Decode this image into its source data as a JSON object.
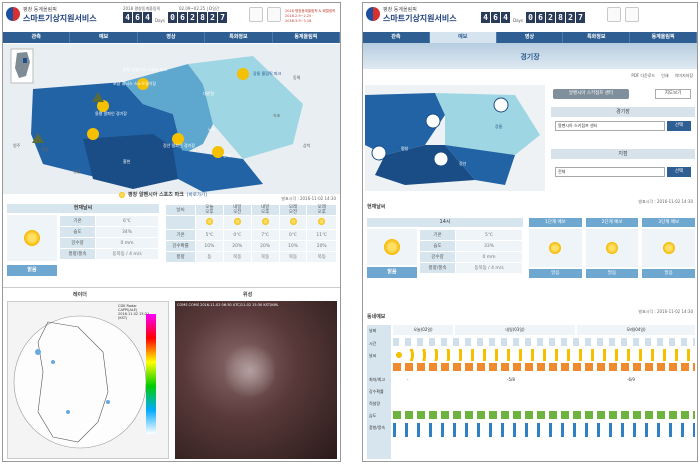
{
  "left": {
    "header": {
      "title_small": "평창 동계올림픽",
      "title_main": "스마트기상지원서비스",
      "games_label": "2018 평창동계올림픽",
      "dates": "02.09~02.25  |  D일간",
      "digits": [
        "4",
        "6",
        "4"
      ],
      "days_label": "Days",
      "clock": [
        "0",
        "6",
        "2",
        "8",
        "2",
        "7"
      ],
      "event": "2018 평창동계올림픽 & 패럴림픽",
      "event_dates": "2018.2.9~2.25 · 2018.3.9~3.18"
    },
    "nav": [
      "관측",
      "예보",
      "영상",
      "특화정보",
      "동계올림픽"
    ],
    "map_labels": [
      "보광 휘닉스 스노우경기장",
      "용평 알파인 경기장",
      "정선 알파인 경기장",
      "평창 알펜시아 스포츠 파크",
      "강릉 올림픽 파크",
      "철원",
      "홍천",
      "인제",
      "속초",
      "대관령",
      "원주",
      "영월",
      "삼척",
      "동해",
      "노즈"
    ],
    "venue_title": "평창 알펜시아 스포츠 파크",
    "venue_link": "[바로가기]",
    "issued": "발표시각 : 2016-11-02 14:30",
    "current": {
      "title": "현재날씨",
      "rows": [
        [
          "기온",
          "6℃"
        ],
        [
          "습도",
          "34%"
        ],
        [
          "강수량",
          "0 mm"
        ],
        [
          "풍향/풍속",
          "동북동 / 4 m/s"
        ]
      ],
      "btn": "맑음"
    },
    "forecast": {
      "days": [
        [
          "오늘",
          "오후"
        ],
        [
          "내일",
          "오전"
        ],
        [
          "내일",
          "오후"
        ],
        [
          "모레",
          "오전"
        ],
        [
          "모레",
          "오후"
        ]
      ],
      "row_labels": [
        "날씨",
        "기온",
        "강수확률",
        "풍향"
      ],
      "temps": [
        "5℃",
        "0℃",
        "7℃",
        "0℃",
        "11℃"
      ],
      "pops": [
        "10%",
        "20%",
        "20%",
        "10%",
        "20%"
      ],
      "winds": [
        "동",
        "북동",
        "북동",
        "북동",
        "북동"
      ]
    },
    "radar": {
      "title": "레이더",
      "caption": "CDK Radar CAPPI(ALE) 2016.11.02 15:21 (KST)"
    },
    "sat": {
      "title": "위성",
      "caption": "COMS COMS 2016-11-02 06:30 UTC/11-02 15:30 KST/KML"
    }
  },
  "right": {
    "header": {
      "title_small": "평창 동계올림픽",
      "title_main": "스마트기상지원서비스",
      "digits": [
        "4",
        "6",
        "4"
      ],
      "days_label": "Days",
      "clock": [
        "0",
        "6",
        "2",
        "8",
        "2",
        "7"
      ]
    },
    "nav": [
      "관측",
      "예보",
      "영상",
      "특화정보",
      "동계올림픽"
    ],
    "banner_title": "경기장",
    "tools": [
      "PDF 다운로드",
      "인쇄",
      "이미지저장"
    ],
    "venue_btn": "알펜시아 스키점프 센터",
    "map_btn": "지도보기",
    "map_labels": [
      "강릉",
      "평창",
      "정선"
    ],
    "select1": {
      "title": "경기장",
      "value": "알펜시아 스키점프 센터",
      "btn": "선택"
    },
    "select2": {
      "title": "지점",
      "value": "전체",
      "btn": "선택"
    },
    "current": {
      "title": "현재날씨",
      "issued": "발표시각 : 2016-11-02 14:30",
      "time": "14시",
      "rows": [
        [
          "기온",
          "5℃"
        ],
        [
          "습도",
          "33%"
        ],
        [
          "강수량",
          "0 mm"
        ],
        [
          "풍향/풍속",
          "동북동 / 4 m/s"
        ]
      ],
      "btn": "맑음",
      "cols": [
        "1단계 예보",
        "2단계 예보",
        "3단계 예보"
      ],
      "col_btns": [
        "맑음",
        "맑음",
        "맑음"
      ]
    },
    "dong": {
      "title": "동네예보",
      "issued": "발표시각 : 2016-11-02 14:30",
      "row_labels": [
        "날짜",
        "시간",
        "날씨",
        "최저/최고",
        "강수확률",
        "적설량",
        "습도",
        "풍향/풍속"
      ],
      "dates": [
        "오늘(02일)",
        "내일(03일)",
        "모레(04일)"
      ],
      "minmax": [
        "-",
        "-5/8",
        "-6/9"
      ]
    }
  }
}
